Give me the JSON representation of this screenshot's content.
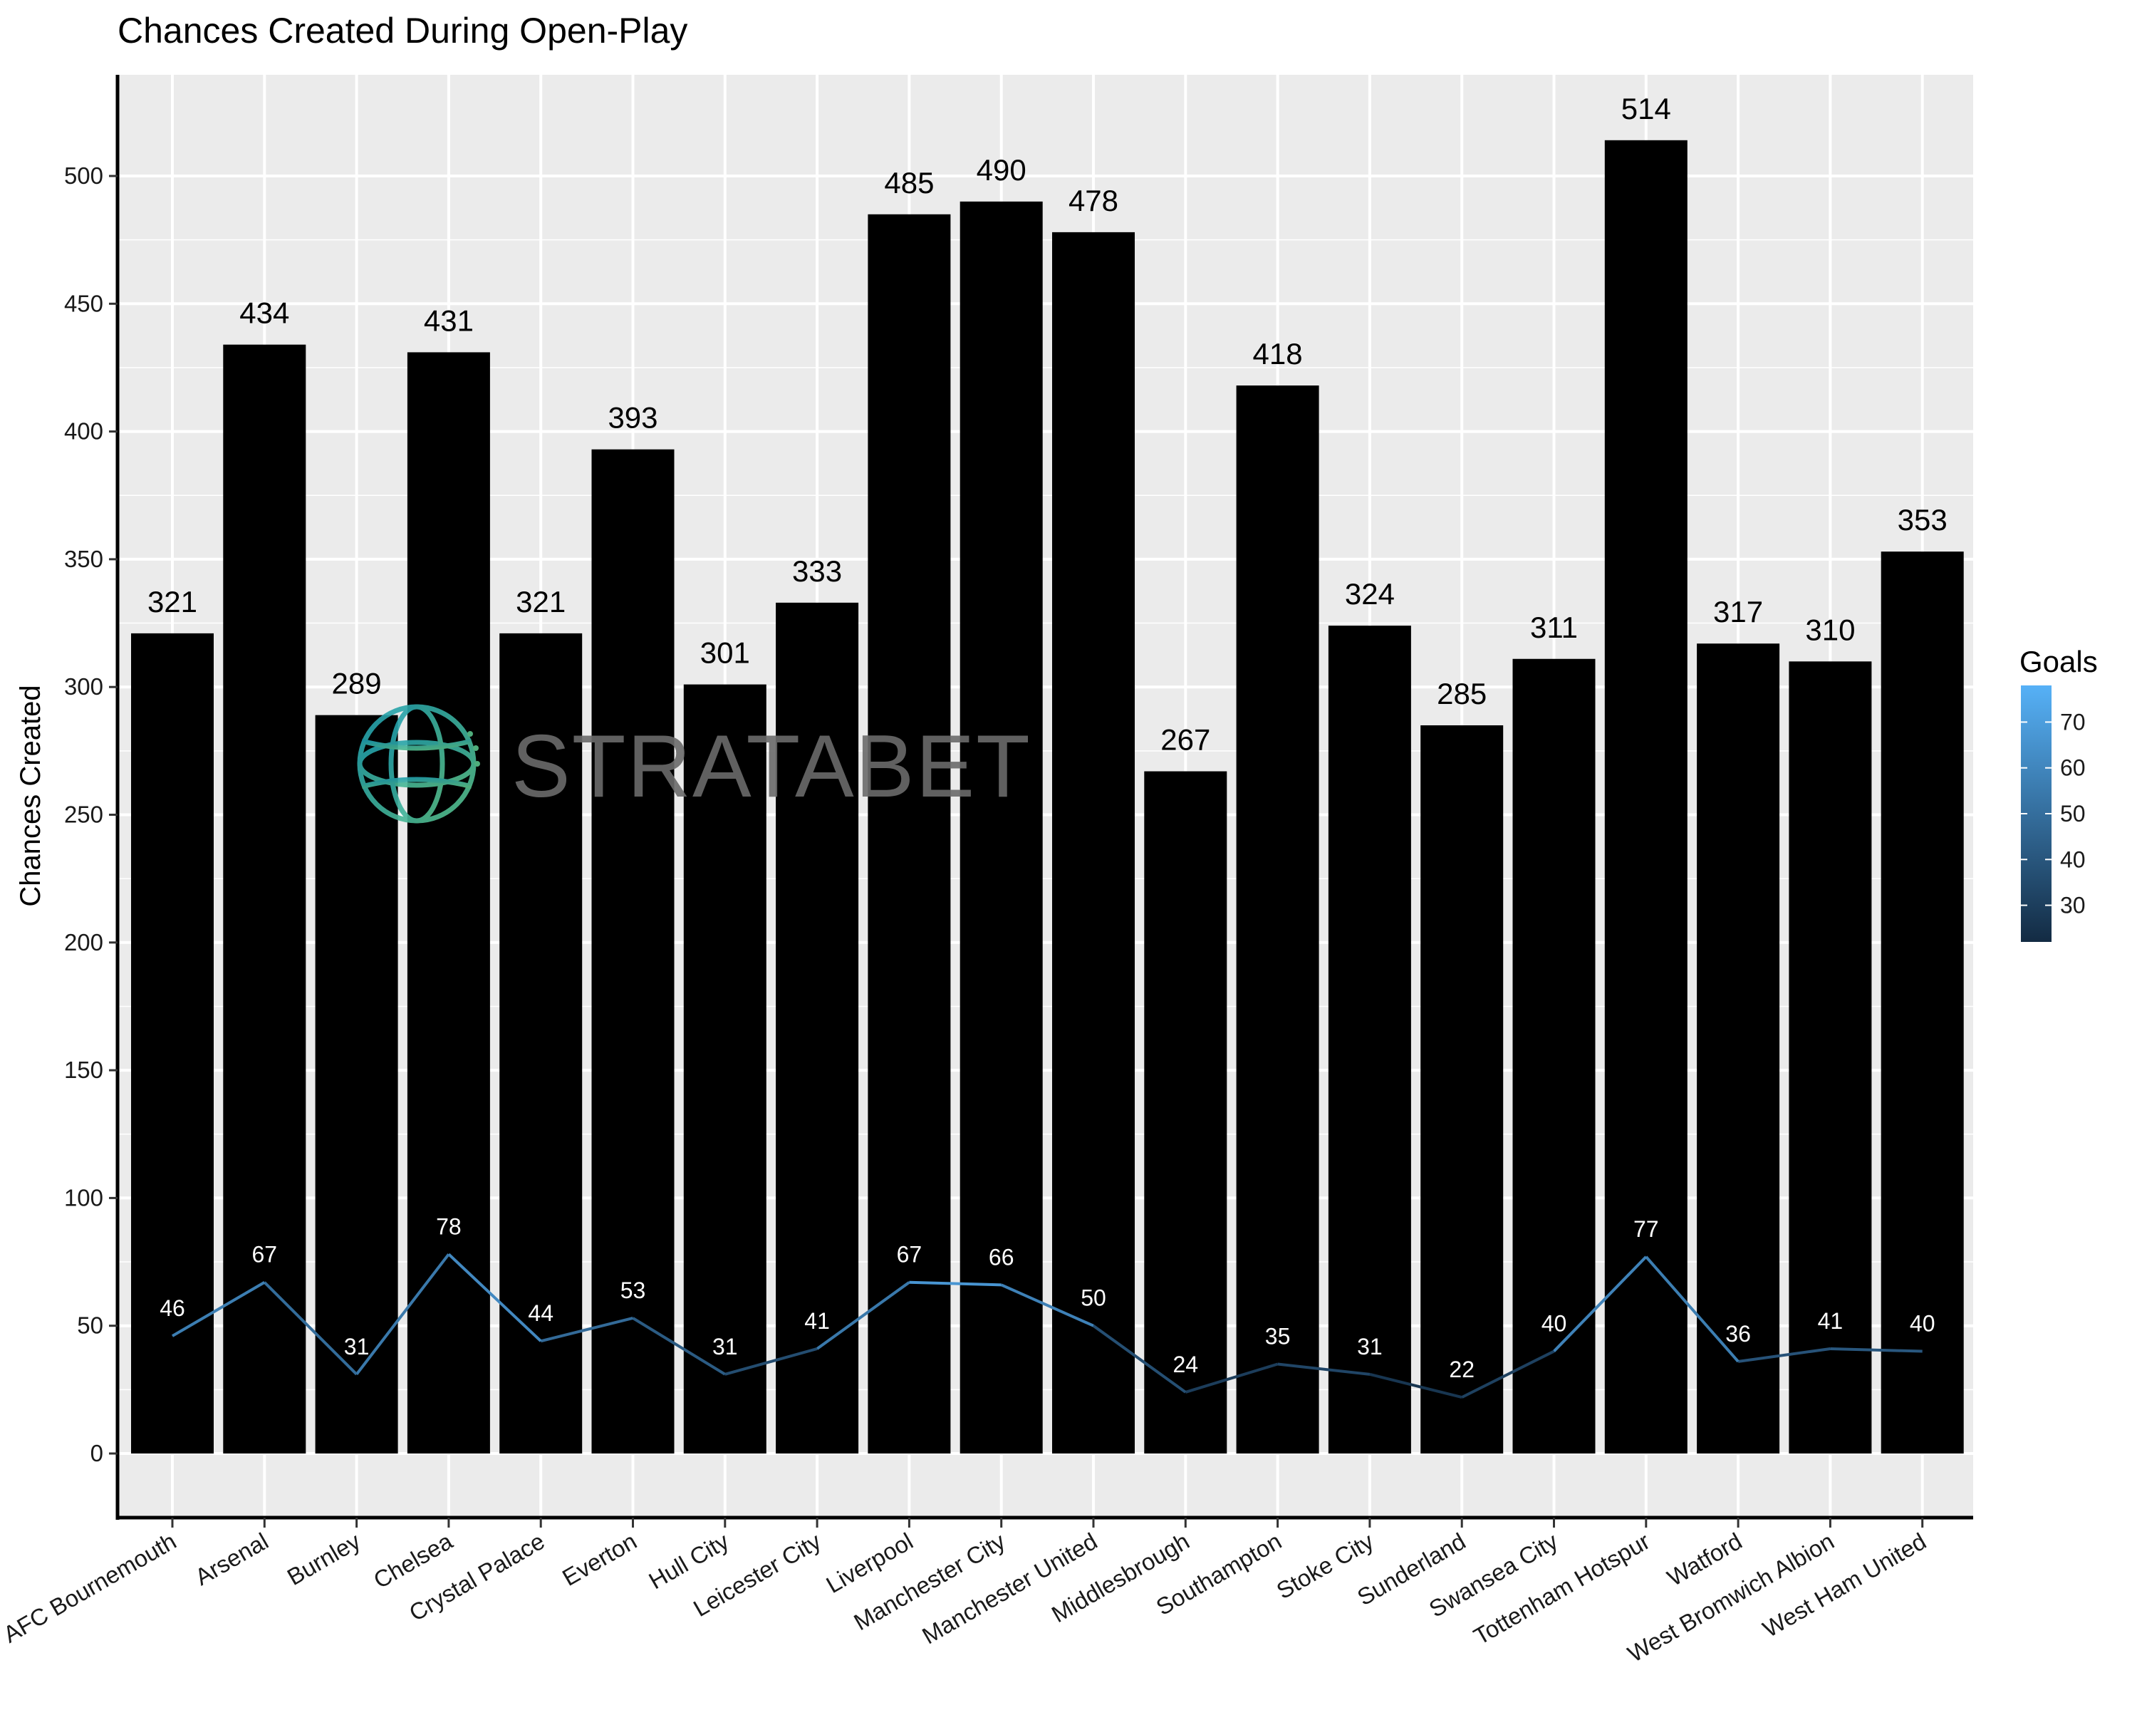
{
  "chart_data": {
    "type": "bar",
    "title": "Chances Created During Open-Play",
    "xlabel": "",
    "ylabel": "Chances Created",
    "ylim": [
      -25,
      540
    ],
    "yticks": [
      0,
      50,
      100,
      150,
      200,
      250,
      300,
      350,
      400,
      450,
      500
    ],
    "grid": true,
    "categories": [
      "AFC Bournemouth",
      "Arsenal",
      "Burnley",
      "Chelsea",
      "Crystal Palace",
      "Everton",
      "Hull City",
      "Leicester City",
      "Liverpool",
      "Manchester City",
      "Manchester United",
      "Middlesbrough",
      "Southampton",
      "Stoke City",
      "Sunderland",
      "Swansea City",
      "Tottenham Hotspur",
      "Watford",
      "West Bromwich Albion",
      "West Ham United"
    ],
    "series": [
      {
        "type": "bar",
        "values": [
          321,
          434,
          289,
          431,
          321,
          393,
          301,
          333,
          485,
          490,
          478,
          267,
          418,
          324,
          285,
          311,
          514,
          317,
          310,
          353
        ],
        "color": "#000000"
      },
      {
        "name": "Goals",
        "type": "line",
        "values": [
          46,
          67,
          31,
          78,
          44,
          53,
          31,
          41,
          67,
          66,
          50,
          24,
          35,
          31,
          22,
          40,
          77,
          36,
          41,
          40
        ],
        "color_low": "#132B43",
        "color_high": "#56B1F7"
      }
    ],
    "legend": {
      "title": "Goals",
      "placement": "right",
      "ticks": [
        30,
        40,
        50,
        60,
        70
      ],
      "range": [
        22,
        78
      ]
    },
    "watermark": {
      "text": "STRATABET",
      "icon": "globe-logo-icon"
    }
  }
}
